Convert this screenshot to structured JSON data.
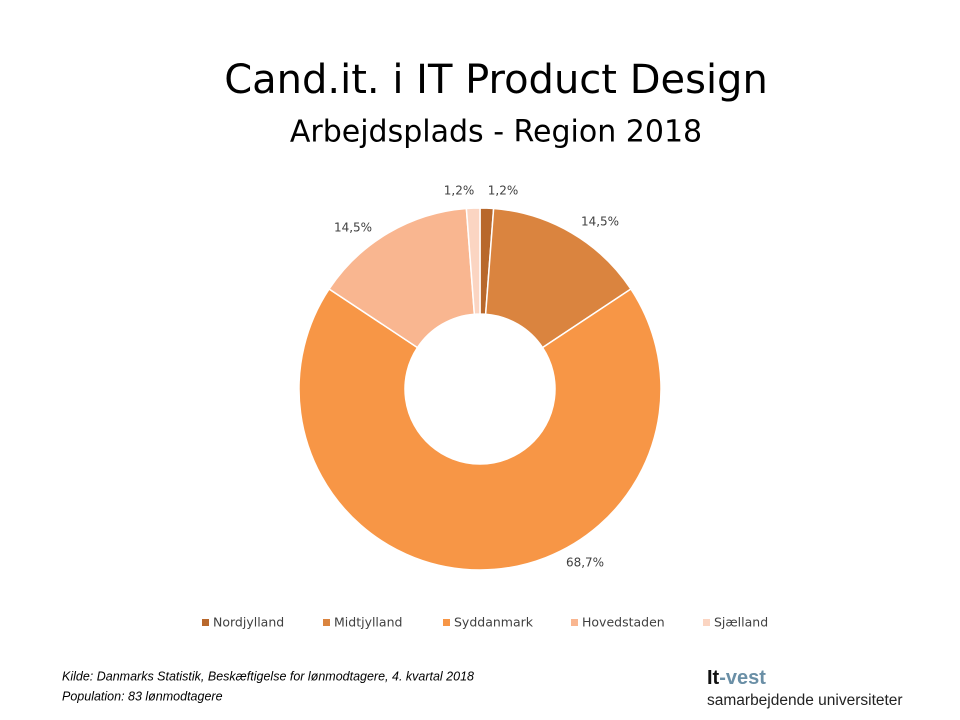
{
  "chart_data": {
    "type": "donut",
    "title": "Cand.it. i IT Product Design",
    "subtitle": "Arbejdsplads - Region 2018",
    "categories": [
      "Nordjylland",
      "Midtjylland",
      "Syddanmark",
      "Hovedstaden",
      "Sjælland"
    ],
    "values": [
      1.2,
      14.5,
      68.7,
      14.5,
      1.2
    ],
    "value_labels": [
      "1,2%",
      "14,5%",
      "68,7%",
      "14,5%",
      "1,2%"
    ],
    "colors": [
      "#b8682c",
      "#da843f",
      "#f79646",
      "#f9b690",
      "#fbd5c2"
    ],
    "legend": "bottom"
  },
  "footer": {
    "source": "Kilde: Danmarks Statistik, Beskæftigelse for lønmodtagere, 4. kvartal 2018",
    "population": "Population: 83 lønmodtagere"
  },
  "logo": {
    "name": [
      "It",
      "-vest"
    ],
    "tagline": "samarbejdende universiteter"
  }
}
